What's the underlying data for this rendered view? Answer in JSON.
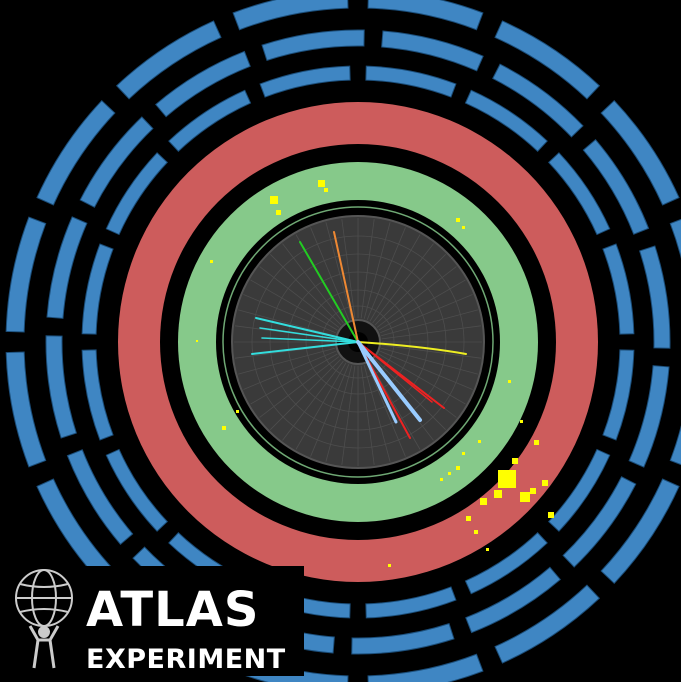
{
  "logo": {
    "title": "ATLAS",
    "subtitle": "EXPERIMENT"
  },
  "colors": {
    "background": "#000000",
    "muon_chambers": "#3f86c3",
    "hadronic_calorimeter": "#cd5c5c",
    "em_calorimeter": "#86c98a",
    "inner_detector": "#3a3a3a",
    "energy_deposits": "#ffff00",
    "track_cyan": "#33dddd",
    "track_red": "#ee2222",
    "track_yellow": "#eeee22",
    "track_green": "#22cc22",
    "track_orange": "#ee8833",
    "track_lightblue": "#99ccff"
  }
}
